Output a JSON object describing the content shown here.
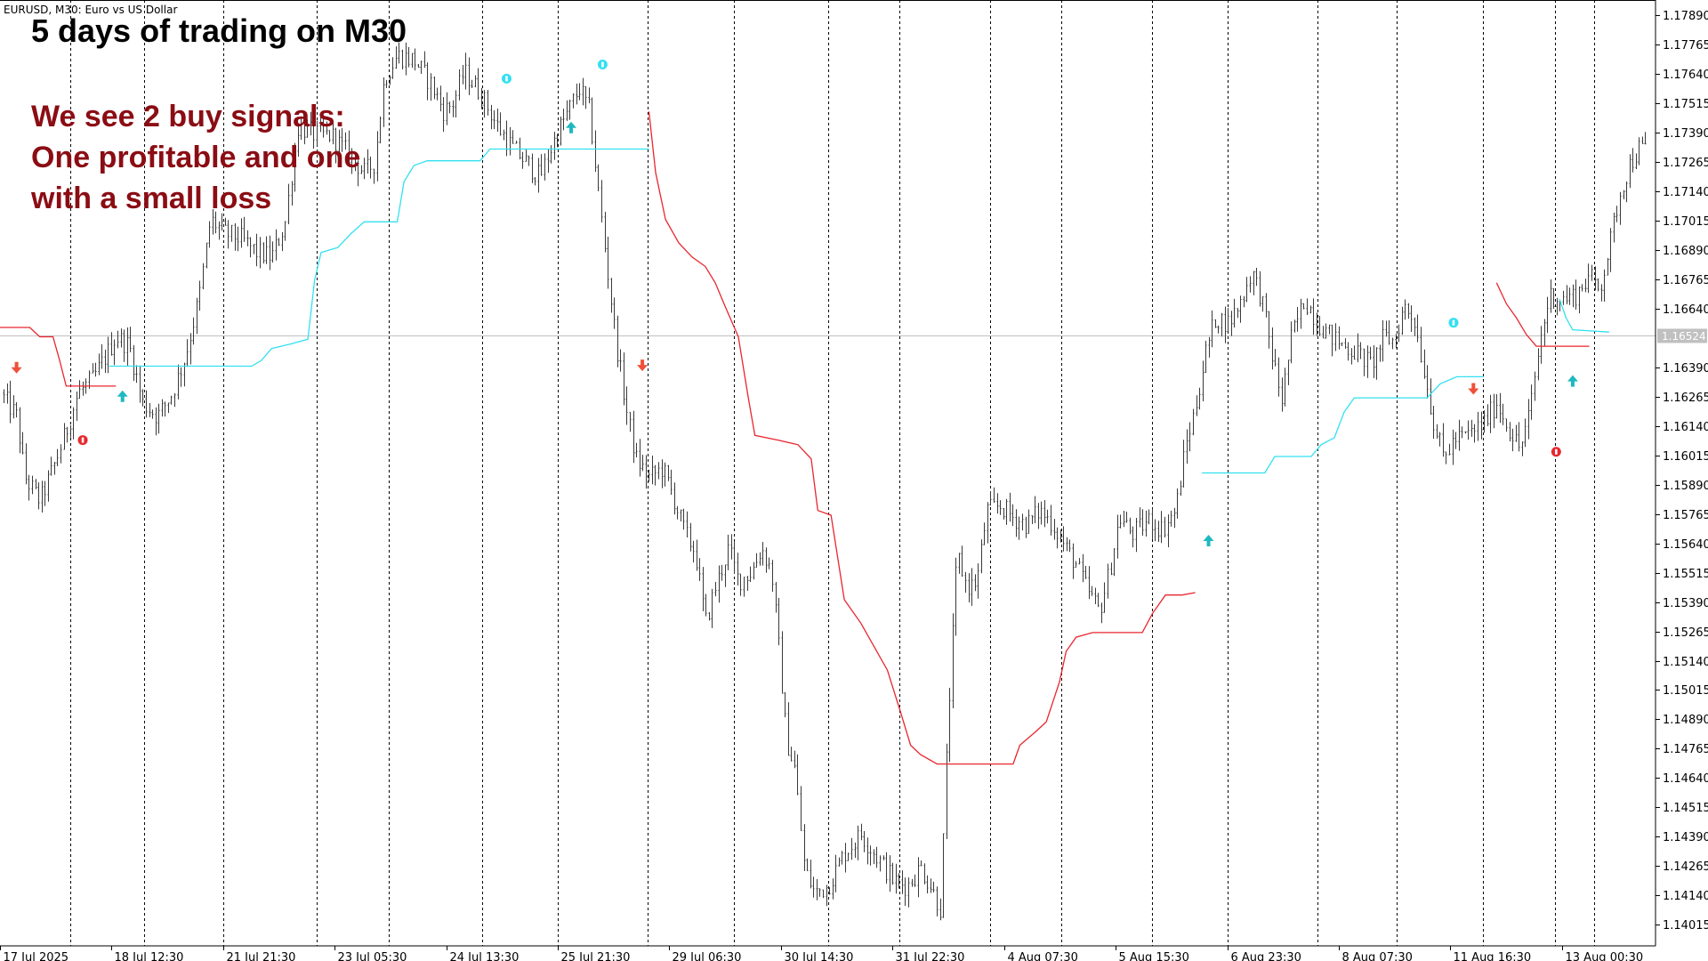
{
  "header": {
    "symbol_label": "EURUSD, M30:  Euro vs US Dollar"
  },
  "annotations": {
    "title": "5 days of trading on M30",
    "note_lines": [
      "We see 2 buy signals:",
      "One profitable and one",
      "with a small loss"
    ]
  },
  "colors": {
    "background": "#ffffff",
    "candles": "#3a3a3a",
    "trail_up": "#33e0f0",
    "trail_down": "#e8262e",
    "buy_arrow": "#1fb8c0",
    "sell_arrow": "#f0503a",
    "title_text": "#000000",
    "note_text": "#8b0d14",
    "grid": "#000000",
    "current_price_line": "#c0c0c0",
    "current_price_tag": "#c0c0c0"
  },
  "chart_data": {
    "type": "candlestick",
    "symbol": "EURUSD",
    "timeframe": "M30",
    "current_price": 1.16524,
    "ylim": [
      1.13925,
      1.17955
    ],
    "price_ticks": [
      "1.17890",
      "1.17765",
      "1.17640",
      "1.17515",
      "1.17390",
      "1.17265",
      "1.17140",
      "1.17015",
      "1.16890",
      "1.16765",
      "1.16640",
      "1.16390",
      "1.16265",
      "1.16140",
      "1.16015",
      "1.15890",
      "1.15765",
      "1.15640",
      "1.15515",
      "1.15390",
      "1.15265",
      "1.15140",
      "1.15015",
      "1.14890",
      "1.14765",
      "1.14640",
      "1.14515",
      "1.14390",
      "1.14265",
      "1.14140",
      "1.14015"
    ],
    "time_labels": [
      "17 Jul 2025",
      "18 Jul 12:30",
      "21 Jul 21:30",
      "23 Jul 05:30",
      "24 Jul 13:30",
      "25 Jul 21:30",
      "29 Jul 06:30",
      "30 Jul 14:30",
      "31 Jul 22:30",
      "4 Aug 07:30",
      "5 Aug 15:30",
      "6 Aug 23:30",
      "8 Aug 07:30",
      "11 Aug 16:30",
      "13 Aug 00:30"
    ],
    "time_label_pos": [
      0.0,
      0.0674,
      0.1348,
      0.2022,
      0.2696,
      0.337,
      0.4043,
      0.4717,
      0.5391,
      0.6065,
      0.6739,
      0.7413,
      0.8087,
      0.8761,
      0.9434
    ],
    "grid_vertical": true,
    "grid_pos": [
      0.0426,
      0.087,
      0.1348,
      0.1913,
      0.2348,
      0.2913,
      0.337,
      0.3913,
      0.4435,
      0.5,
      0.5435,
      0.5978,
      0.6413,
      0.6957,
      0.7413,
      0.7957,
      0.8435,
      0.8957,
      0.9392,
      0.963
    ],
    "price_path": [
      [
        0.0,
        1.1628
      ],
      [
        0.01,
        1.1618
      ],
      [
        0.015,
        1.1592
      ],
      [
        0.024,
        1.1582
      ],
      [
        0.032,
        1.1596
      ],
      [
        0.04,
        1.1612
      ],
      [
        0.047,
        1.1628
      ],
      [
        0.056,
        1.1634
      ],
      [
        0.064,
        1.1644
      ],
      [
        0.07,
        1.1652
      ],
      [
        0.078,
        1.1648
      ],
      [
        0.086,
        1.1624
      ],
      [
        0.095,
        1.1618
      ],
      [
        0.104,
        1.1628
      ],
      [
        0.112,
        1.1644
      ],
      [
        0.12,
        1.1668
      ],
      [
        0.127,
        1.1702
      ],
      [
        0.136,
        1.1696
      ],
      [
        0.145,
        1.1694
      ],
      [
        0.155,
        1.1688
      ],
      [
        0.164,
        1.1686
      ],
      [
        0.172,
        1.17
      ],
      [
        0.18,
        1.1742
      ],
      [
        0.19,
        1.1738
      ],
      [
        0.2,
        1.1738
      ],
      [
        0.21,
        1.173
      ],
      [
        0.22,
        1.1722
      ],
      [
        0.226,
        1.1726
      ],
      [
        0.232,
        1.1762
      ],
      [
        0.24,
        1.1772
      ],
      [
        0.25,
        1.177
      ],
      [
        0.26,
        1.176
      ],
      [
        0.268,
        1.1748
      ],
      [
        0.274,
        1.1752
      ],
      [
        0.28,
        1.1765
      ],
      [
        0.29,
        1.1756
      ],
      [
        0.3,
        1.1742
      ],
      [
        0.31,
        1.1732
      ],
      [
        0.318,
        1.1726
      ],
      [
        0.326,
        1.172
      ],
      [
        0.336,
        1.1738
      ],
      [
        0.343,
        1.1748
      ],
      [
        0.35,
        1.1758
      ],
      [
        0.356,
        1.1748
      ],
      [
        0.36,
        1.1722
      ],
      [
        0.366,
        1.1685
      ],
      [
        0.372,
        1.165
      ],
      [
        0.378,
        1.1622
      ],
      [
        0.384,
        1.16
      ],
      [
        0.392,
        1.1592
      ],
      [
        0.4,
        1.1596
      ],
      [
        0.406,
        1.1585
      ],
      [
        0.414,
        1.1568
      ],
      [
        0.42,
        1.156
      ],
      [
        0.426,
        1.153
      ],
      [
        0.432,
        1.1545
      ],
      [
        0.44,
        1.1562
      ],
      [
        0.446,
        1.1548
      ],
      [
        0.454,
        1.1552
      ],
      [
        0.46,
        1.1562
      ],
      [
        0.466,
        1.1552
      ],
      [
        0.47,
        1.1522
      ],
      [
        0.475,
        1.148
      ],
      [
        0.48,
        1.1468
      ],
      [
        0.486,
        1.1425
      ],
      [
        0.492,
        1.1415
      ],
      [
        0.5,
        1.1418
      ],
      [
        0.51,
        1.1432
      ],
      [
        0.52,
        1.144
      ],
      [
        0.53,
        1.143
      ],
      [
        0.54,
        1.142
      ],
      [
        0.548,
        1.1418
      ],
      [
        0.556,
        1.1426
      ],
      [
        0.562,
        1.1418
      ],
      [
        0.568,
        1.1408
      ],
      [
        0.572,
        1.148
      ],
      [
        0.578,
        1.156
      ],
      [
        0.584,
        1.1545
      ],
      [
        0.59,
        1.1548
      ],
      [
        0.596,
        1.1578
      ],
      [
        0.604,
        1.158
      ],
      [
        0.612,
        1.1575
      ],
      [
        0.62,
        1.1572
      ],
      [
        0.628,
        1.1578
      ],
      [
        0.636,
        1.1572
      ],
      [
        0.642,
        1.1564
      ],
      [
        0.65,
        1.1555
      ],
      [
        0.656,
        1.1545
      ],
      [
        0.664,
        1.1535
      ],
      [
        0.67,
        1.1552
      ],
      [
        0.676,
        1.1575
      ],
      [
        0.684,
        1.1568
      ],
      [
        0.694,
        1.1574
      ],
      [
        0.702,
        1.157
      ],
      [
        0.71,
        1.1578
      ],
      [
        0.716,
        1.1605
      ],
      [
        0.722,
        1.1622
      ],
      [
        0.728,
        1.1645
      ],
      [
        0.734,
        1.166
      ],
      [
        0.742,
        1.1658
      ],
      [
        0.75,
        1.1668
      ],
      [
        0.756,
        1.168
      ],
      [
        0.762,
        1.1668
      ],
      [
        0.768,
        1.1645
      ],
      [
        0.774,
        1.1625
      ],
      [
        0.78,
        1.1652
      ],
      [
        0.788,
        1.1668
      ],
      [
        0.796,
        1.1658
      ],
      [
        0.804,
        1.1652
      ],
      [
        0.812,
        1.1648
      ],
      [
        0.82,
        1.1645
      ],
      [
        0.828,
        1.164
      ],
      [
        0.836,
        1.1652
      ],
      [
        0.842,
        1.165
      ],
      [
        0.848,
        1.1665
      ],
      [
        0.854,
        1.166
      ],
      [
        0.86,
        1.1638
      ],
      [
        0.866,
        1.1615
      ],
      [
        0.872,
        1.16
      ],
      [
        0.878,
        1.1608
      ],
      [
        0.886,
        1.161
      ],
      [
        0.896,
        1.1615
      ],
      [
        0.904,
        1.1624
      ],
      [
        0.912,
        1.1612
      ],
      [
        0.918,
        1.1604
      ],
      [
        0.924,
        1.162
      ],
      [
        0.93,
        1.165
      ],
      [
        0.936,
        1.167
      ],
      [
        0.944,
        1.1668
      ],
      [
        0.952,
        1.167
      ],
      [
        0.96,
        1.1678
      ],
      [
        0.966,
        1.1672
      ],
      [
        0.972,
        1.169
      ],
      [
        0.978,
        1.1712
      ],
      [
        0.984,
        1.1725
      ],
      [
        0.99,
        1.1732
      ]
    ],
    "trail_up_segments": [
      [
        [
          0.066,
          1.16395
        ],
        [
          0.142,
          1.16395
        ],
        [
          0.152,
          1.16395
        ],
        [
          0.158,
          1.1642
        ],
        [
          0.164,
          1.1647
        ],
        [
          0.176,
          1.1649
        ],
        [
          0.186,
          1.1651
        ],
        [
          0.19,
          1.1676
        ],
        [
          0.194,
          1.1688
        ],
        [
          0.204,
          1.169
        ],
        [
          0.212,
          1.1696
        ],
        [
          0.22,
          1.1701
        ],
        [
          0.24,
          1.1701
        ],
        [
          0.244,
          1.1718
        ],
        [
          0.25,
          1.1725
        ],
        [
          0.258,
          1.1727
        ],
        [
          0.29,
          1.1727
        ],
        [
          0.296,
          1.1732
        ],
        [
          0.36,
          1.1732
        ],
        [
          0.392,
          1.1732
        ]
      ],
      [
        [
          0.726,
          1.1594
        ],
        [
          0.764,
          1.1594
        ],
        [
          0.77,
          1.1601
        ],
        [
          0.792,
          1.1601
        ],
        [
          0.798,
          1.1606
        ],
        [
          0.806,
          1.1609
        ],
        [
          0.812,
          1.162
        ],
        [
          0.818,
          1.1626
        ],
        [
          0.838,
          1.1626
        ],
        [
          0.862,
          1.1626
        ],
        [
          0.87,
          1.1632
        ],
        [
          0.88,
          1.1635
        ],
        [
          0.896,
          1.1635
        ]
      ],
      [
        [
          0.942,
          1.1668
        ],
        [
          0.946,
          1.166
        ],
        [
          0.95,
          1.1655
        ],
        [
          0.972,
          1.1654
        ]
      ]
    ],
    "trail_down_segments": [
      [
        [
          0.0,
          1.1656
        ],
        [
          0.018,
          1.1656
        ],
        [
          0.024,
          1.1652
        ],
        [
          0.032,
          1.1652
        ],
        [
          0.036,
          1.1642
        ],
        [
          0.04,
          1.1631
        ],
        [
          0.048,
          1.1631
        ],
        [
          0.07,
          1.1631
        ]
      ],
      [
        [
          0.392,
          1.1748
        ],
        [
          0.396,
          1.1722
        ],
        [
          0.402,
          1.1702
        ],
        [
          0.41,
          1.1692
        ],
        [
          0.418,
          1.1686
        ],
        [
          0.426,
          1.1682
        ],
        [
          0.432,
          1.1675
        ],
        [
          0.438,
          1.1665
        ],
        [
          0.446,
          1.1652
        ],
        [
          0.452,
          1.1626
        ],
        [
          0.456,
          1.161
        ],
        [
          0.47,
          1.1608
        ],
        [
          0.482,
          1.1606
        ],
        [
          0.49,
          1.16
        ],
        [
          0.494,
          1.1578
        ],
        [
          0.502,
          1.1576
        ],
        [
          0.51,
          1.154
        ],
        [
          0.52,
          1.153
        ],
        [
          0.528,
          1.152
        ],
        [
          0.536,
          1.151
        ],
        [
          0.544,
          1.1492
        ],
        [
          0.55,
          1.1478
        ],
        [
          0.556,
          1.1474
        ],
        [
          0.566,
          1.147
        ],
        [
          0.58,
          1.147
        ],
        [
          0.612,
          1.147
        ],
        [
          0.616,
          1.1478
        ],
        [
          0.626,
          1.1484
        ],
        [
          0.632,
          1.1488
        ],
        [
          0.64,
          1.1505
        ],
        [
          0.644,
          1.1518
        ],
        [
          0.65,
          1.1524
        ],
        [
          0.66,
          1.1526
        ],
        [
          0.69,
          1.1526
        ],
        [
          0.696,
          1.1534
        ],
        [
          0.704,
          1.1542
        ],
        [
          0.714,
          1.1542
        ],
        [
          0.722,
          1.1543
        ]
      ],
      [
        [
          0.904,
          1.1675
        ],
        [
          0.91,
          1.1666
        ],
        [
          0.916,
          1.166
        ],
        [
          0.922,
          1.1653
        ],
        [
          0.928,
          1.1648
        ],
        [
          0.96,
          1.1648
        ]
      ]
    ],
    "buy_arrows": [
      [
        0.074,
        1.16265
      ],
      [
        0.345,
        1.1741
      ],
      [
        0.73,
        1.1565
      ],
      [
        0.95,
        1.1633
      ]
    ],
    "sell_arrows": [
      [
        0.01,
        1.1639
      ],
      [
        0.388,
        1.164
      ],
      [
        0.89,
        1.163
      ]
    ],
    "close_up_marks": [
      [
        0.306,
        1.1762
      ],
      [
        0.364,
        1.1768
      ],
      [
        0.878,
        1.1658
      ]
    ],
    "close_down_marks": [
      [
        0.05,
        1.1608
      ],
      [
        0.94,
        1.1603
      ]
    ]
  }
}
